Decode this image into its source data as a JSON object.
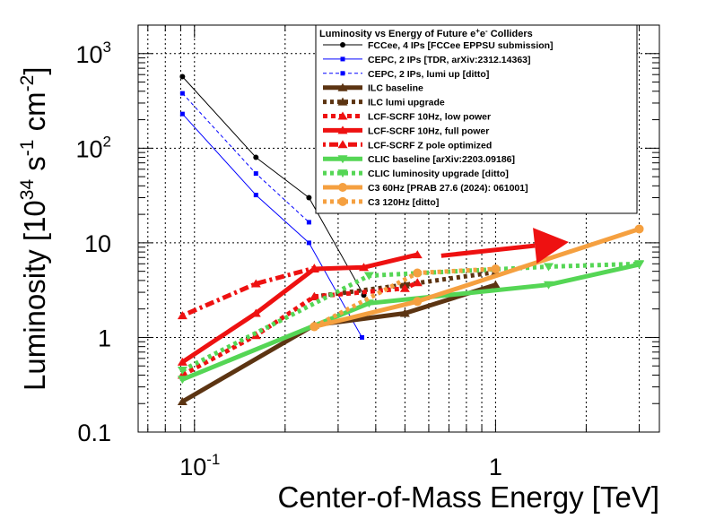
{
  "chart_data": {
    "type": "line",
    "title": "",
    "xlabel": "Center-of-Mass Energy [TeV]",
    "ylabel_parts": [
      "Luminosity [10",
      "34",
      " s",
      "-1",
      " cm",
      "-2",
      "]"
    ],
    "ylabel": "Luminosity [10^34 s^-1 cm^-2]",
    "xscale": "log",
    "yscale": "log",
    "xlim": [
      0.065,
      3.5
    ],
    "ylim": [
      0.1,
      2000
    ],
    "grid": true,
    "x_ticks": [
      {
        "value": 0.1,
        "base": "10",
        "exp": "-1"
      },
      {
        "value": 1,
        "text": "1"
      }
    ],
    "y_ticks": [
      {
        "value": 0.1,
        "text": "0.1"
      },
      {
        "value": 1,
        "text": "1"
      },
      {
        "value": 10,
        "text": "10"
      },
      {
        "value": 100,
        "base": "10",
        "exp": "2"
      },
      {
        "value": 1000,
        "base": "10",
        "exp": "3"
      }
    ],
    "legend": {
      "position": "top-right",
      "title_parts": [
        "Luminosity vs Energy of Future e",
        "+",
        "e",
        "-",
        " Colliders"
      ],
      "title": "Luminosity vs Energy of Future e+e- Colliders"
    },
    "series": [
      {
        "name": "FCCee, 4 IPs [FCCee EPPSU submission]",
        "color": "#000000",
        "width": 1,
        "dash": "",
        "marker": "circle",
        "marker_size": 3,
        "x": [
          0.0912,
          0.16,
          0.24,
          0.365
        ],
        "y": [
          570,
          80,
          30,
          2.8
        ]
      },
      {
        "name": "CEPC, 2 IPs [TDR, arXiv:2312.14363]",
        "color": "#0000ff",
        "width": 1,
        "dash": "",
        "marker": "square",
        "marker_size": 2.5,
        "x": [
          0.0912,
          0.16,
          0.24,
          0.36
        ],
        "y": [
          230,
          32,
          10,
          1.0
        ]
      },
      {
        "name": "CEPC, 2 IPs, lumi up [ditto]",
        "color": "#0000ff",
        "width": 1,
        "dash": "4,3",
        "marker": "square",
        "marker_size": 2.5,
        "x": [
          0.0912,
          0.16,
          0.24
        ],
        "y": [
          380,
          54,
          16.5
        ]
      },
      {
        "name": "ILC baseline",
        "color": "#5c3412",
        "width": 5,
        "dash": "",
        "marker": "triangle",
        "marker_size": 5,
        "x": [
          0.0912,
          0.25,
          0.5,
          1.0
        ],
        "y": [
          0.21,
          1.35,
          1.8,
          3.6
        ]
      },
      {
        "name": "ILC lumi upgrade",
        "color": "#5c3412",
        "width": 5,
        "dash": "4,4",
        "marker": "triangle",
        "marker_size": 5,
        "x": [
          0.25,
          0.5,
          1.0
        ],
        "y": [
          2.7,
          3.6,
          4.9
        ]
      },
      {
        "name": "LCF-SCRF 10Hz, low power",
        "color": "#ee1111",
        "width": 5,
        "dash": "5,4",
        "marker": "triangle",
        "marker_size": 5,
        "x": [
          0.0912,
          0.16,
          0.25,
          0.5,
          0.55
        ],
        "y": [
          0.4,
          1.05,
          2.7,
          3.3,
          3.8
        ]
      },
      {
        "name": "LCF-SCRF 10Hz, full power",
        "color": "#ee1111",
        "width": 5,
        "dash": "",
        "marker": "triangle",
        "marker_size": 5,
        "x": [
          0.0912,
          0.16,
          0.25,
          0.365,
          0.55
        ],
        "y": [
          0.55,
          1.8,
          5.3,
          5.5,
          7.5
        ]
      },
      {
        "name": "LCF-SCRF Z pole optimized",
        "color": "#ee1111",
        "width": 5,
        "dash": "3,4,10,4",
        "marker": "triangle",
        "marker_size": 5,
        "x": [
          0.0912,
          0.16,
          0.25
        ],
        "y": [
          1.7,
          3.7,
          5.4
        ]
      },
      {
        "name": "CLIC baseline [arXiv:2203.09186]",
        "color": "#55d655",
        "width": 5,
        "dash": "",
        "marker": "triangle-down",
        "marker_size": 5,
        "x": [
          0.0912,
          0.38,
          1.5,
          3.0
        ],
        "y": [
          0.36,
          2.3,
          3.6,
          5.9
        ]
      },
      {
        "name": "CLIC luminosity upgrade [ditto]",
        "color": "#55d655",
        "width": 5,
        "dash": "4,4",
        "marker": "triangle-down",
        "marker_size": 5,
        "x": [
          0.0912,
          0.38,
          1.5,
          3.0
        ],
        "y": [
          0.45,
          4.5,
          5.6,
          6.0
        ]
      },
      {
        "name": "C3 60Hz [PRAB 27.6 (2024): 061001]",
        "color": "#f5a040",
        "width": 5,
        "dash": "",
        "marker": "circle",
        "marker_size": 5,
        "x": [
          0.25,
          0.55,
          3.0
        ],
        "y": [
          1.3,
          2.4,
          14
        ]
      },
      {
        "name": "C3 120Hz [ditto]",
        "color": "#f5a040",
        "width": 5,
        "dash": "4,4",
        "marker": "circle",
        "marker_size": 5,
        "x": [
          0.25,
          0.55,
          1.0
        ],
        "y": [
          1.3,
          4.8,
          5.3
        ]
      }
    ],
    "annotations": [
      {
        "type": "arrow",
        "color": "#ee1111",
        "x_start": 0.66,
        "y_start": 7.3,
        "x_end": 1.75,
        "y_end": 10.2
      }
    ]
  }
}
